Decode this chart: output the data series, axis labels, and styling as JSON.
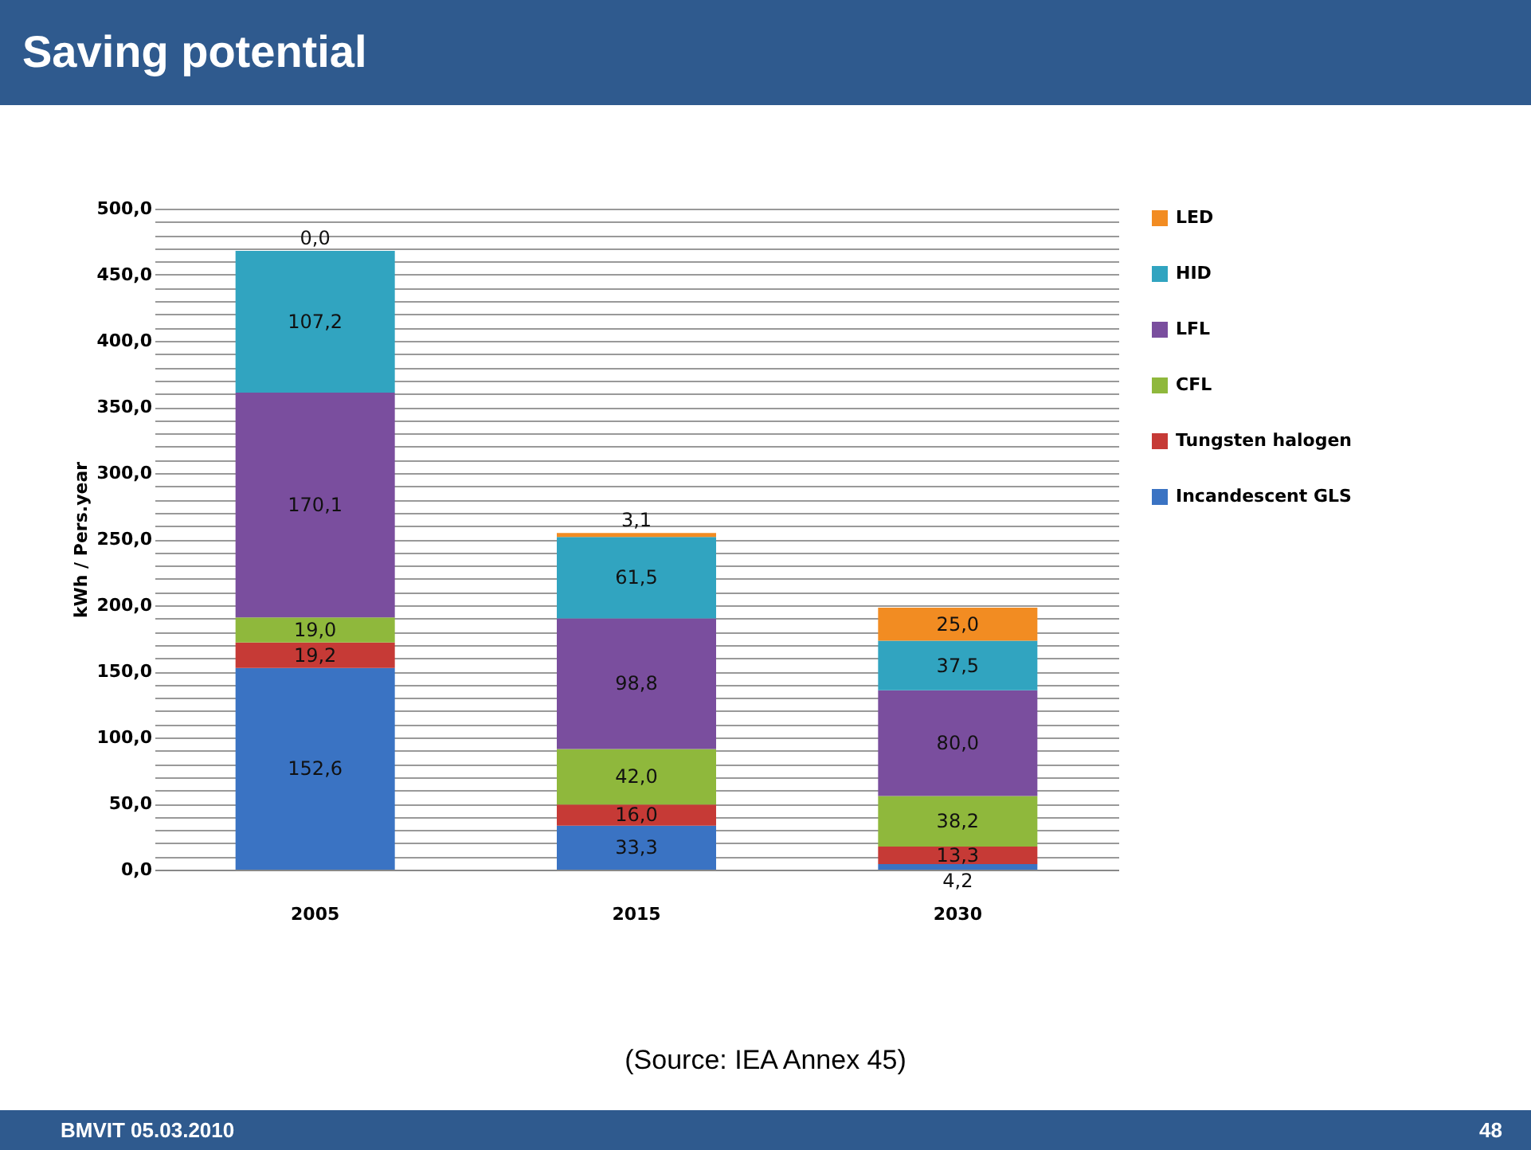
{
  "chart_data": {
    "type": "bar",
    "title": "Saving potential",
    "ylabel": "kWh / Pers.year",
    "categories": [
      "2005",
      "2015",
      "2030"
    ],
    "stacked": true,
    "legend": "right",
    "grid": "y",
    "ylim": [
      0,
      500
    ],
    "yticks": [
      {
        "value": 0,
        "label": "0,0"
      },
      {
        "value": 10,
        "label": null
      },
      {
        "value": 20,
        "label": null
      },
      {
        "value": 30,
        "label": null
      },
      {
        "value": 40,
        "label": null
      },
      {
        "value": 50,
        "label": "50,0"
      },
      {
        "value": 60,
        "label": null
      },
      {
        "value": 70,
        "label": null
      },
      {
        "value": 80,
        "label": null
      },
      {
        "value": 90,
        "label": null
      },
      {
        "value": 100,
        "label": "100,0"
      },
      {
        "value": 110,
        "label": null
      },
      {
        "value": 120,
        "label": null
      },
      {
        "value": 130,
        "label": null
      },
      {
        "value": 140,
        "label": null
      },
      {
        "value": 150,
        "label": "150,0"
      },
      {
        "value": 160,
        "label": null
      },
      {
        "value": 170,
        "label": null
      },
      {
        "value": 180,
        "label": null
      },
      {
        "value": 190,
        "label": null
      },
      {
        "value": 200,
        "label": "200,0"
      },
      {
        "value": 210,
        "label": null
      },
      {
        "value": 220,
        "label": null
      },
      {
        "value": 230,
        "label": null
      },
      {
        "value": 240,
        "label": null
      },
      {
        "value": 250,
        "label": "250,0"
      },
      {
        "value": 260,
        "label": null
      },
      {
        "value": 270,
        "label": null
      },
      {
        "value": 280,
        "label": null
      },
      {
        "value": 290,
        "label": null
      },
      {
        "value": 300,
        "label": "300,0"
      },
      {
        "value": 310,
        "label": null
      },
      {
        "value": 320,
        "label": null
      },
      {
        "value": 330,
        "label": null
      },
      {
        "value": 340,
        "label": null
      },
      {
        "value": 350,
        "label": "350,0"
      },
      {
        "value": 360,
        "label": null
      },
      {
        "value": 370,
        "label": null
      },
      {
        "value": 380,
        "label": null
      },
      {
        "value": 390,
        "label": null
      },
      {
        "value": 400,
        "label": "400,0"
      },
      {
        "value": 410,
        "label": null
      },
      {
        "value": 420,
        "label": null
      },
      {
        "value": 430,
        "label": null
      },
      {
        "value": 440,
        "label": null
      },
      {
        "value": 450,
        "label": "450,0"
      },
      {
        "value": 460,
        "label": null
      },
      {
        "value": 470,
        "label": null
      },
      {
        "value": 480,
        "label": null
      },
      {
        "value": 490,
        "label": null
      },
      {
        "value": 500,
        "label": "500,0"
      }
    ],
    "series": [
      {
        "name": "Incandescent GLS",
        "color": "#3a73c3",
        "values": [
          152.6,
          33.3,
          4.2
        ],
        "value_labels": [
          "152,6",
          "33,3",
          "4,2"
        ]
      },
      {
        "name": "Tungsten halogen",
        "color": "#c63a36",
        "values": [
          19.2,
          16.0,
          13.3
        ],
        "value_labels": [
          "19,2",
          "16,0",
          "13,3"
        ]
      },
      {
        "name": "CFL",
        "color": "#8fb83c",
        "values": [
          19.0,
          42.0,
          38.2
        ],
        "value_labels": [
          "19,0",
          "42,0",
          "38,2"
        ]
      },
      {
        "name": "LFL",
        "color": "#7a4e9e",
        "values": [
          170.1,
          98.8,
          80.0
        ],
        "value_labels": [
          "170,1",
          "98,8",
          "80,0"
        ]
      },
      {
        "name": "HID",
        "color": "#31a4c0",
        "values": [
          107.2,
          61.5,
          37.5
        ],
        "value_labels": [
          "107,2",
          "61,5",
          "37,5"
        ]
      },
      {
        "name": "LED",
        "color": "#f28c22",
        "values": [
          0.0,
          3.1,
          25.0
        ],
        "value_labels": [
          "0,0",
          "3,1",
          "25,0"
        ]
      }
    ],
    "annotations": [
      "(Source: IEA Annex 45)",
      "BMVIT  05.03.2010",
      "48"
    ]
  }
}
